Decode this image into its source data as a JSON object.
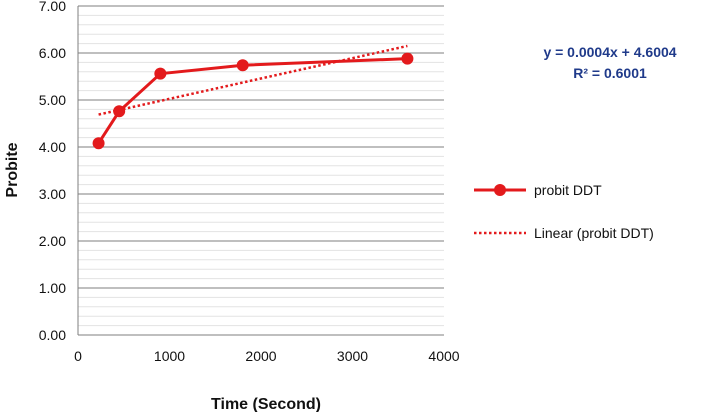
{
  "chart_data": {
    "type": "line",
    "title": "",
    "xlabel": "Time (Second)",
    "ylabel": "Probite",
    "xlim": [
      0,
      4000
    ],
    "ylim": [
      0,
      7
    ],
    "x_ticks": [
      "0",
      "1000",
      "2000",
      "3000",
      "4000"
    ],
    "y_ticks": [
      "0.00",
      "1.00",
      "2.00",
      "3.00",
      "4.00",
      "5.00",
      "6.00",
      "7.00"
    ],
    "grid": "horizontal major and minor",
    "legend_position": "right",
    "series": [
      {
        "name": "probit DDT",
        "color": "#e31a1c",
        "style": "solid-with-markers",
        "points": [
          {
            "x": 225,
            "y": 4.08
          },
          {
            "x": 450,
            "y": 4.76
          },
          {
            "x": 900,
            "y": 5.56
          },
          {
            "x": 1800,
            "y": 5.74
          },
          {
            "x": 3600,
            "y": 5.88
          }
        ]
      },
      {
        "name": "Linear (probit DDT)",
        "color": "#e31a1c",
        "style": "dotted",
        "points": [
          {
            "x": 225,
            "y": 4.69
          },
          {
            "x": 3600,
            "y": 6.15
          }
        ]
      }
    ],
    "annotation": {
      "equation": "y = 0.0004x + 4.6004",
      "r_squared": "R² = 0.6001",
      "color": "#1f3a8a"
    }
  }
}
